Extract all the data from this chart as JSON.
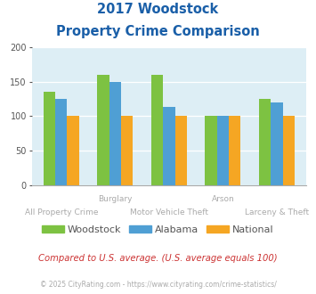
{
  "title_line1": "2017 Woodstock",
  "title_line2": "Property Crime Comparison",
  "cat_line1": [
    "",
    "Burglary",
    "",
    "Arson",
    ""
  ],
  "cat_line2": [
    "All Property Crime",
    "",
    "Motor Vehicle Theft",
    "",
    "Larceny & Theft"
  ],
  "woodstock": [
    135,
    160,
    160,
    100,
    125
  ],
  "alabama": [
    125,
    150,
    113,
    100,
    120
  ],
  "national": [
    100,
    100,
    100,
    100,
    100
  ],
  "color_woodstock": "#7dc242",
  "color_alabama": "#4f9fd4",
  "color_national": "#f5a623",
  "ylim": [
    0,
    200
  ],
  "yticks": [
    0,
    50,
    100,
    150,
    200
  ],
  "bg_color": "#ddeef5",
  "title_color": "#1a5fa8",
  "xlabel_color": "#aaaaaa",
  "legend_text_color": "#555555",
  "footer_text": "Compared to U.S. average. (U.S. average equals 100)",
  "footer_color": "#cc3333",
  "credit_text": "© 2025 CityRating.com - https://www.cityrating.com/crime-statistics/",
  "credit_color": "#aaaaaa",
  "bar_width": 0.22
}
